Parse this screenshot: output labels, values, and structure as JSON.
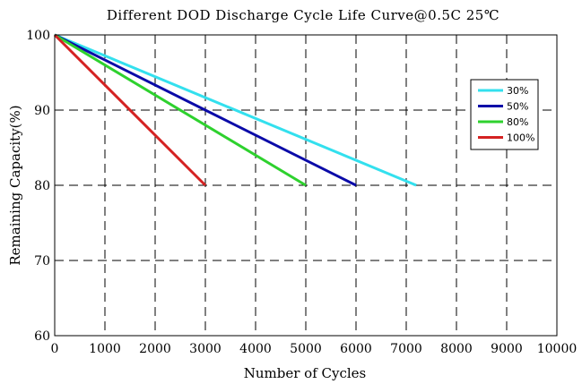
{
  "chart_data": {
    "type": "line",
    "title": "Different DOD Discharge Cycle Life Curve@0.5C 25℃",
    "xlabel": "Number of Cycles",
    "ylabel": "Remaining Capacity(%)",
    "xlim": [
      0,
      10000
    ],
    "ylim": [
      60,
      100
    ],
    "xticks": [
      0,
      1000,
      2000,
      3000,
      4000,
      5000,
      6000,
      7000,
      8000,
      9000,
      10000
    ],
    "yticks": [
      60,
      70,
      80,
      90,
      100
    ],
    "grid": true,
    "legend_position": "top-right",
    "series": [
      {
        "name": "30%",
        "color": "#33e0ee",
        "x": [
          0,
          7200
        ],
        "y": [
          100,
          80
        ]
      },
      {
        "name": "50%",
        "color": "#0a0aa8",
        "x": [
          0,
          6000
        ],
        "y": [
          100,
          80
        ]
      },
      {
        "name": "80%",
        "color": "#2ed12e",
        "x": [
          0,
          5000
        ],
        "y": [
          100,
          80
        ]
      },
      {
        "name": "100%",
        "color": "#d42222",
        "x": [
          0,
          3000
        ],
        "y": [
          100,
          80
        ]
      }
    ]
  }
}
